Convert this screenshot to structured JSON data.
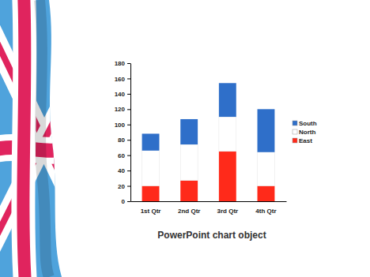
{
  "chart_data": {
    "type": "bar",
    "stacked": true,
    "title": "PowerPoint chart object",
    "categories": [
      "1st Qtr",
      "2nd Qtr",
      "3rd Qtr",
      "4th Qtr"
    ],
    "series": [
      {
        "name": "East",
        "color": "#ff2a1a",
        "values": [
          20,
          27,
          65,
          20
        ]
      },
      {
        "name": "North",
        "color": "#ffffff",
        "values": [
          46,
          47,
          45,
          44
        ]
      },
      {
        "name": "South",
        "color": "#2f6fc9",
        "values": [
          22,
          33,
          44,
          56
        ]
      }
    ],
    "ylim": [
      0,
      180
    ],
    "yticks": [
      0,
      20,
      40,
      60,
      80,
      100,
      120,
      140,
      160,
      180
    ],
    "grid": false,
    "legend": "right"
  }
}
